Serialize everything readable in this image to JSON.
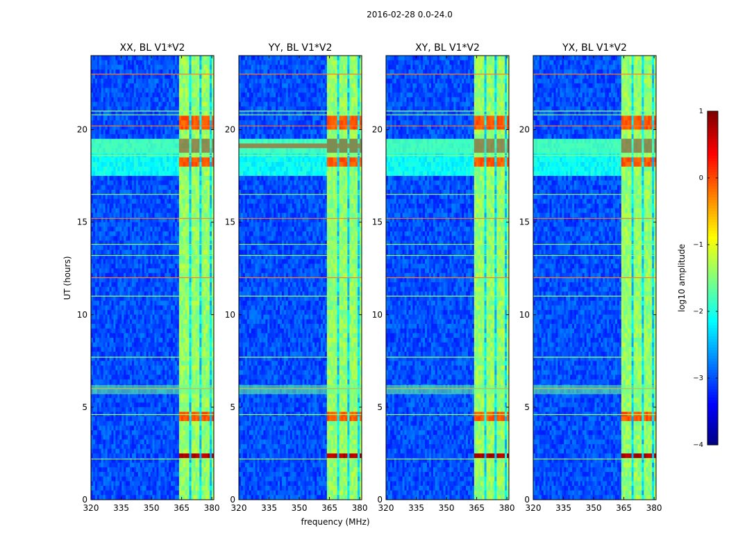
{
  "suptitle": "2016-02-28 0.0-24.0",
  "chart_data": {
    "type": "heatmap",
    "suptitle": "2016-02-28 0.0-24.0",
    "xlabel": "frequency (MHz)",
    "ylabel": "UT (hours)",
    "xlim": [
      320,
      381
    ],
    "ylim": [
      0,
      24
    ],
    "xticks": [
      320,
      335,
      350,
      365,
      380
    ],
    "yticks": [
      0,
      5,
      10,
      15,
      20
    ],
    "panels": [
      {
        "title": "XX, BL V1*V2",
        "pol": "XX"
      },
      {
        "title": "YY, BL V1*V2",
        "pol": "YY"
      },
      {
        "title": "XY, BL V1*V2",
        "pol": "XY"
      },
      {
        "title": "YX, BL V1*V2",
        "pol": "YX"
      }
    ],
    "colorbar": {
      "label": "log10 amplitude",
      "range": [
        -4,
        1
      ],
      "ticks": [
        1,
        0,
        -1,
        -2,
        -3,
        -4
      ],
      "tick_labels": [
        "1",
        "0",
        "−1",
        "−2",
        "−3",
        "−4"
      ],
      "colormap": "jet"
    },
    "features": {
      "background_level": -3.0,
      "band_level": -1.4,
      "band_range_mhz": [
        363.5,
        380.5
      ],
      "band_gaps_mhz": [
        [
          369.2,
          369.9
        ],
        [
          374.3,
          375.0
        ],
        [
          379.3,
          380.0
        ]
      ],
      "strong_rfi_hours": [
        [
          2.2,
          2.6
        ],
        [
          18.8,
          19.5
        ]
      ],
      "moderate_rfi_hours": [
        [
          20.0,
          20.7
        ],
        [
          18.1,
          18.6
        ],
        [
          4.3,
          4.8
        ]
      ],
      "full_width_hot_lines_hours": [
        23.0,
        21.0,
        20.8,
        20.2,
        18.6,
        16.5,
        15.2,
        13.8,
        13.2,
        12.0,
        11.0,
        7.7,
        6.0,
        4.6,
        2.2
      ],
      "full_width_bright_bands_hours": [
        [
          5.7,
          6.2
        ],
        [
          18.7,
          19.5
        ]
      ]
    }
  }
}
